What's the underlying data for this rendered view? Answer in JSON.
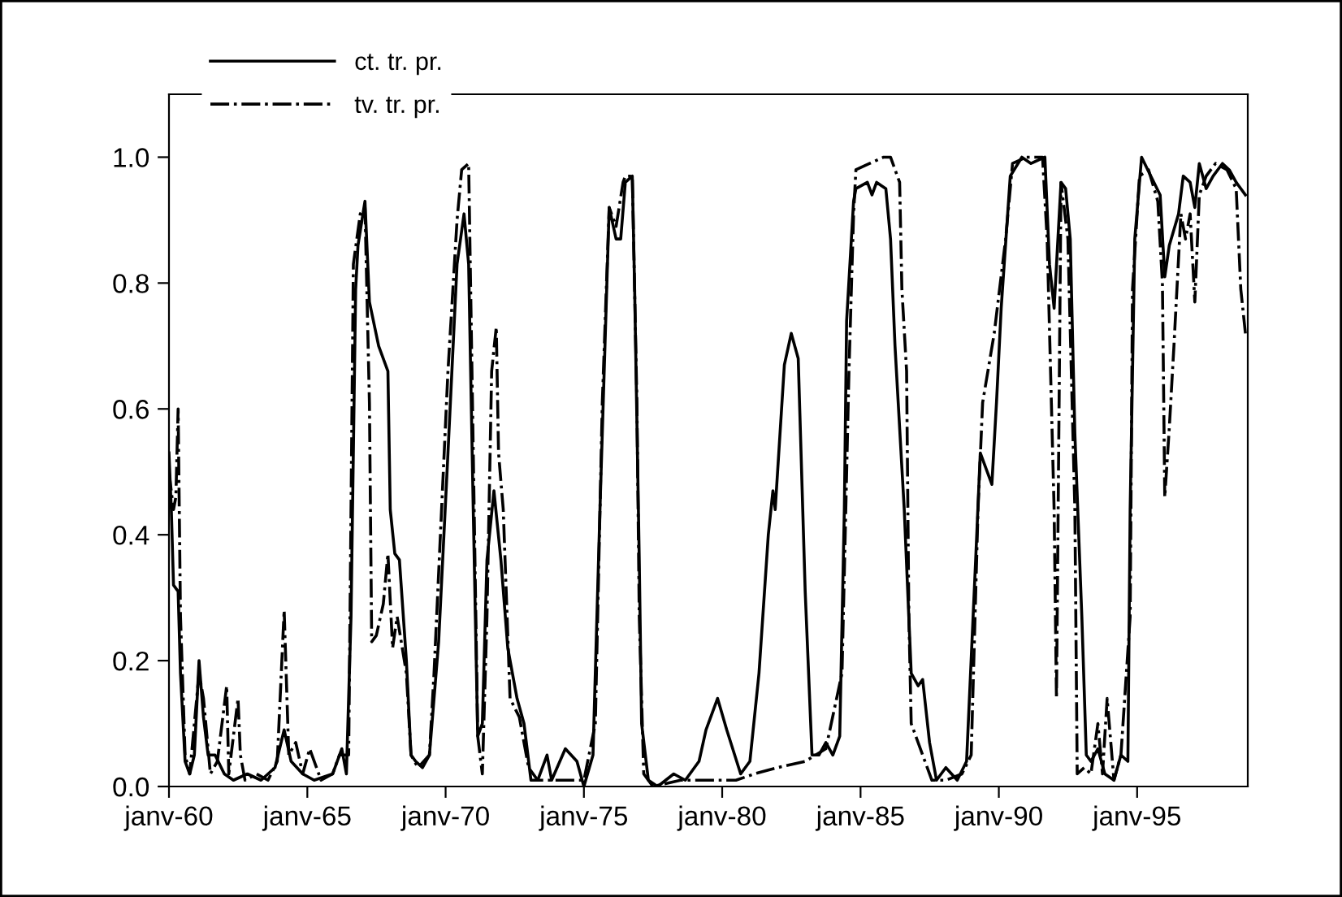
{
  "chart_data": {
    "type": "line",
    "legend": "top left",
    "grid": false,
    "marker": "none",
    "xlim": [
      "1960-01",
      "1999-01"
    ],
    "ylim": [
      0,
      1.1
    ],
    "xticks": [
      {
        "value": "1960-01",
        "label": "janv-60"
      },
      {
        "value": "1965-01",
        "label": "janv-65"
      },
      {
        "value": "1970-01",
        "label": "janv-70"
      },
      {
        "value": "1975-01",
        "label": "janv-75"
      },
      {
        "value": "1980-01",
        "label": "janv-80"
      },
      {
        "value": "1985-01",
        "label": "janv-85"
      },
      {
        "value": "1990-01",
        "label": "janv-90"
      },
      {
        "value": "1995-01",
        "label": "janv-95"
      }
    ],
    "yticks": [
      {
        "value": 0,
        "label": "0.0"
      },
      {
        "value": 0.2,
        "label": "0.2"
      },
      {
        "value": 0.4,
        "label": "0.4"
      },
      {
        "value": 0.6,
        "label": "0.6"
      },
      {
        "value": 0.8,
        "label": "0.8"
      },
      {
        "value": 1,
        "label": "1.0"
      }
    ],
    "series": [
      {
        "name": "ct. tr. pr.",
        "color": "#000000",
        "line_style": "solid",
        "x": [
          "1960-01",
          "1960-02",
          "1960-03",
          "1960-05",
          "1960-06",
          "1960-08",
          "1960-10",
          "1960-12",
          "1961-02",
          "1961-04",
          "1961-06",
          "1961-09",
          "1962-01",
          "1962-05",
          "1962-11",
          "1963-05",
          "1963-11",
          "1964-03",
          "1964-06",
          "1964-11",
          "1965-04",
          "1965-12",
          "1966-04",
          "1966-06",
          "1966-08",
          "1966-10",
          "1966-11",
          "1967-02",
          "1967-04",
          "1967-08",
          "1967-12",
          "1968-01",
          "1968-03",
          "1968-05",
          "1968-08",
          "1968-10",
          "1968-12",
          "1969-03",
          "1969-06",
          "1969-10",
          "1970-02",
          "1970-06",
          "1970-09",
          "1970-11",
          "1971-01",
          "1971-03",
          "1971-05",
          "1971-07",
          "1971-10",
          "1972-01",
          "1972-04",
          "1972-08",
          "1972-11",
          "1973-02",
          "1973-05",
          "1973-09",
          "1973-11",
          "1974-05",
          "1974-10",
          "1975-01",
          "1975-05",
          "1975-08",
          "1975-12",
          "1976-03",
          "1976-05",
          "1976-07",
          "1976-10",
          "1976-11",
          "1977-01",
          "1977-02",
          "1977-05",
          "1977-09",
          "1978-04",
          "1978-09",
          "1979-03",
          "1979-06",
          "1979-11",
          "1980-03",
          "1980-09",
          "1981-01",
          "1981-05",
          "1981-09",
          "1981-11",
          "1981-12",
          "1982-04",
          "1982-07",
          "1982-10",
          "1983-01",
          "1983-04",
          "1983-07",
          "1983-10",
          "1984-01",
          "1984-04",
          "1984-06",
          "1984-07",
          "1984-10",
          "1984-11",
          "1985-04",
          "1985-06",
          "1985-08",
          "1985-12",
          "1986-02",
          "1986-04",
          "1986-08",
          "1986-11",
          "1987-02",
          "1987-04",
          "1987-07",
          "1987-10",
          "1988-02",
          "1988-07",
          "1988-11",
          "1989-03",
          "1989-05",
          "1989-07",
          "1989-10",
          "1989-12",
          "1990-02",
          "1990-06",
          "1990-11",
          "1991-03",
          "1991-09",
          "1991-11",
          "1992-01",
          "1992-04",
          "1992-06",
          "1992-08",
          "1992-10",
          "1993-01",
          "1993-03",
          "1993-05",
          "1993-08",
          "1993-11",
          "1994-03",
          "1994-06",
          "1994-09",
          "1994-10",
          "1994-12",
          "1995-03",
          "1995-07",
          "1995-11",
          "1996-01",
          "1996-03",
          "1996-07",
          "1996-09",
          "1996-12",
          "1997-02",
          "1997-04",
          "1997-07",
          "1997-10",
          "1998-02",
          "1998-05",
          "1998-08",
          "1998-12"
        ],
        "values": [
          0.53,
          0.44,
          0.32,
          0.31,
          0.18,
          0.04,
          0.02,
          0.05,
          0.2,
          0.11,
          0.05,
          0.05,
          0.02,
          0.01,
          0.02,
          0.01,
          0.03,
          0.09,
          0.04,
          0.02,
          0.01,
          0.02,
          0.06,
          0.02,
          0.27,
          0.79,
          0.86,
          0.93,
          0.77,
          0.7,
          0.66,
          0.44,
          0.37,
          0.36,
          0.2,
          0.05,
          0.04,
          0.03,
          0.05,
          0.23,
          0.53,
          0.83,
          0.91,
          0.83,
          0.44,
          0.08,
          0.1,
          0.36,
          0.47,
          0.36,
          0.22,
          0.14,
          0.1,
          0.01,
          0.01,
          0.05,
          0.01,
          0.06,
          0.04,
          0.0,
          0.05,
          0.44,
          0.92,
          0.87,
          0.87,
          0.96,
          0.97,
          0.79,
          0.36,
          0.1,
          0.01,
          0.0,
          0.02,
          0.01,
          0.04,
          0.09,
          0.14,
          0.09,
          0.02,
          0.04,
          0.18,
          0.4,
          0.47,
          0.44,
          0.67,
          0.72,
          0.68,
          0.31,
          0.05,
          0.05,
          0.07,
          0.05,
          0.08,
          0.44,
          0.74,
          0.93,
          0.95,
          0.96,
          0.94,
          0.96,
          0.95,
          0.87,
          0.7,
          0.44,
          0.18,
          0.16,
          0.17,
          0.07,
          0.01,
          0.03,
          0.01,
          0.04,
          0.36,
          0.53,
          0.51,
          0.48,
          0.61,
          0.76,
          0.97,
          1.0,
          0.99,
          1.0,
          0.83,
          0.76,
          0.96,
          0.95,
          0.87,
          0.56,
          0.27,
          0.05,
          0.04,
          0.06,
          0.02,
          0.01,
          0.05,
          0.04,
          0.44,
          0.87,
          1.0,
          0.97,
          0.94,
          0.81,
          0.86,
          0.91,
          0.97,
          0.96,
          0.92,
          0.99,
          0.95,
          0.97,
          0.99,
          0.98,
          0.96,
          0.94
        ]
      },
      {
        "name": "tv. tr. pr.",
        "color": "#000000",
        "line_style": "dashdot",
        "x": [
          "1960-01",
          "1960-03",
          "1960-04",
          "1960-05",
          "1960-06",
          "1960-08",
          "1960-10",
          "1961-02",
          "1961-04",
          "1961-07",
          "1961-10",
          "1962-02",
          "1962-03",
          "1962-07",
          "1962-08",
          "1962-10",
          "1963-03",
          "1963-08",
          "1963-12",
          "1964-03",
          "1964-05",
          "1964-08",
          "1964-11",
          "1965-02",
          "1965-07",
          "1965-12",
          "1966-03",
          "1966-07",
          "1966-09",
          "1966-12",
          "1967-02",
          "1967-04",
          "1967-05",
          "1967-07",
          "1967-10",
          "1967-12",
          "1968-02",
          "1968-04",
          "1968-08",
          "1968-10",
          "1969-01",
          "1969-06",
          "1969-08",
          "1970-02",
          "1970-06",
          "1970-08",
          "1970-11",
          "1971-01",
          "1971-03",
          "1971-05",
          "1971-07",
          "1971-09",
          "1971-11",
          "1971-12",
          "1972-02",
          "1972-05",
          "1972-09",
          "1973-01",
          "1973-05",
          "1973-12",
          "1974-07",
          "1975-01",
          "1975-06",
          "1975-09",
          "1975-12",
          "1976-03",
          "1976-06",
          "1976-07",
          "1976-10",
          "1976-12",
          "1977-01",
          "1977-03",
          "1977-07",
          "1978-07",
          "1979-07",
          "1980-07",
          "1981-03",
          "1982-01",
          "1983-01",
          "1983-10",
          "1984-05",
          "1984-08",
          "1984-10",
          "1984-11",
          "1985-05",
          "1985-11",
          "1986-02",
          "1986-06",
          "1986-07",
          "1986-09",
          "1986-10",
          "1986-11",
          "1987-04",
          "1987-08",
          "1988-02",
          "1988-09",
          "1989-01",
          "1989-04",
          "1989-06",
          "1989-11",
          "1990-04",
          "1990-07",
          "1991-01",
          "1991-08",
          "1991-10",
          "1992-01",
          "1992-02",
          "1992-03",
          "1992-04",
          "1992-07",
          "1992-10",
          "1992-11",
          "1993-02",
          "1993-05",
          "1993-08",
          "1993-10",
          "1993-12",
          "1994-03",
          "1994-06",
          "1994-10",
          "1994-11",
          "1995-02",
          "1995-06",
          "1995-10",
          "1995-12",
          "1996-01",
          "1996-03",
          "1996-05",
          "1996-08",
          "1996-10",
          "1996-12",
          "1997-02",
          "1997-04",
          "1997-07",
          "1997-11",
          "1998-04",
          "1998-08",
          "1998-10",
          "1998-12"
        ],
        "values": [
          0.5,
          0.44,
          0.46,
          0.6,
          0.27,
          0.05,
          0.02,
          0.18,
          0.14,
          0.02,
          0.04,
          0.16,
          0.02,
          0.14,
          0.05,
          0.01,
          0.02,
          0.01,
          0.04,
          0.28,
          0.05,
          0.07,
          0.02,
          0.06,
          0.01,
          0.02,
          0.05,
          0.05,
          0.83,
          0.91,
          0.92,
          0.61,
          0.23,
          0.24,
          0.29,
          0.37,
          0.22,
          0.27,
          0.18,
          0.05,
          0.03,
          0.05,
          0.18,
          0.66,
          0.9,
          0.98,
          0.99,
          0.53,
          0.08,
          0.02,
          0.27,
          0.66,
          0.73,
          0.53,
          0.44,
          0.14,
          0.11,
          0.03,
          0.01,
          0.01,
          0.01,
          0.01,
          0.1,
          0.61,
          0.92,
          0.89,
          0.96,
          0.97,
          0.97,
          0.61,
          0.27,
          0.02,
          0.0,
          0.01,
          0.01,
          0.01,
          0.02,
          0.03,
          0.04,
          0.06,
          0.18,
          0.66,
          0.91,
          0.98,
          0.99,
          1.0,
          1.0,
          0.96,
          0.79,
          0.66,
          0.27,
          0.1,
          0.05,
          0.01,
          0.01,
          0.02,
          0.05,
          0.44,
          0.61,
          0.72,
          0.87,
          0.99,
          1.0,
          1.0,
          0.87,
          0.44,
          0.14,
          0.53,
          0.96,
          0.87,
          0.44,
          0.02,
          0.03,
          0.02,
          0.1,
          0.02,
          0.14,
          0.01,
          0.05,
          0.27,
          0.79,
          0.97,
          0.98,
          0.93,
          0.8,
          0.46,
          0.57,
          0.7,
          0.91,
          0.87,
          0.91,
          0.77,
          0.94,
          0.97,
          0.99,
          0.98,
          0.95,
          0.79,
          0.72
        ]
      }
    ]
  }
}
